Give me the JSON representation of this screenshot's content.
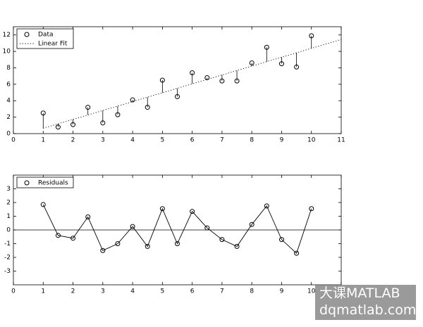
{
  "chart_data": [
    {
      "type": "scatter",
      "x": [
        1,
        1.5,
        2,
        2.5,
        3,
        3.5,
        4,
        4.5,
        5,
        5.5,
        6,
        6.5,
        7,
        7.5,
        8,
        8.5,
        9,
        9.5,
        10
      ],
      "series": [
        {
          "name": "Data",
          "color": "#000000",
          "marker": "circle",
          "values": [
            2.5,
            0.8,
            1.1,
            3.2,
            1.3,
            2.3,
            4.1,
            3.2,
            6.5,
            4.5,
            7.4,
            6.8,
            6.4,
            6.4,
            8.6,
            10.5,
            8.5,
            8.1,
            11.9
          ]
        },
        {
          "name": "Linear Fit",
          "color": "#000000",
          "style": "dotted",
          "x": [
            1,
            11
          ],
          "values": [
            0.65,
            11.45
          ]
        }
      ],
      "stems": true,
      "xlim": [
        0,
        11
      ],
      "xticks": [
        0,
        1,
        2,
        3,
        4,
        5,
        6,
        7,
        8,
        9,
        10,
        11
      ],
      "ylim": [
        0,
        13
      ],
      "yticks": [
        0,
        2,
        4,
        6,
        8,
        10,
        12
      ],
      "legend": "upper left"
    },
    {
      "type": "line",
      "x": [
        1,
        1.5,
        2,
        2.5,
        3,
        3.5,
        4,
        4.5,
        5,
        5.5,
        6,
        6.5,
        7,
        7.5,
        8,
        8.5,
        9,
        9.5,
        10
      ],
      "series": [
        {
          "name": "Residuals",
          "color": "#000000",
          "marker": "circle",
          "values": [
            1.85,
            -0.4,
            -0.6,
            0.95,
            -1.5,
            -1.0,
            0.25,
            -1.2,
            1.55,
            -1.0,
            1.35,
            0.15,
            -0.7,
            -1.2,
            0.4,
            1.75,
            -0.7,
            -1.7,
            1.55
          ]
        }
      ],
      "zero_line": true,
      "xlim": [
        0,
        11
      ],
      "xticks": [
        0,
        1,
        2,
        3,
        4,
        5,
        6,
        7,
        8,
        9,
        10,
        11
      ],
      "ylim": [
        -4,
        4
      ],
      "yticks": [
        -3,
        -2,
        -1,
        0,
        1,
        2,
        3
      ],
      "legend": "upper left"
    }
  ],
  "watermark": {
    "line1": "大课MATLAB",
    "line2": "dqmatlab.com"
  }
}
